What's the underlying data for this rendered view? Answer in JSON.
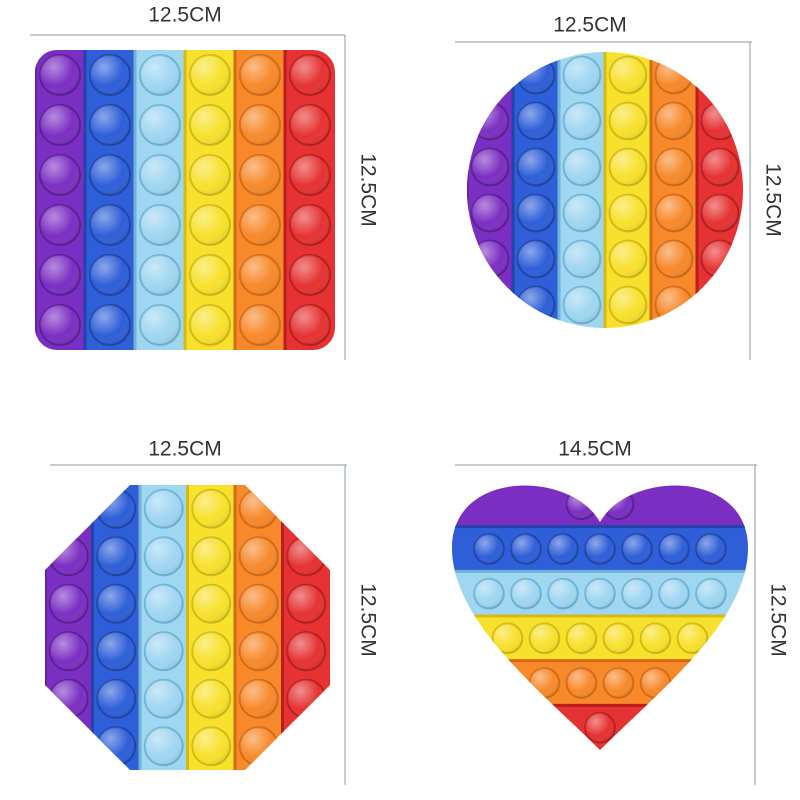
{
  "items": [
    {
      "width": "12.5CM",
      "height": "12.5CM"
    },
    {
      "width": "12.5CM",
      "height": "12.5CM"
    },
    {
      "width": "12.5CM",
      "height": "12.5CM"
    },
    {
      "width": "14.5CM",
      "height": "12.5CM"
    }
  ]
}
